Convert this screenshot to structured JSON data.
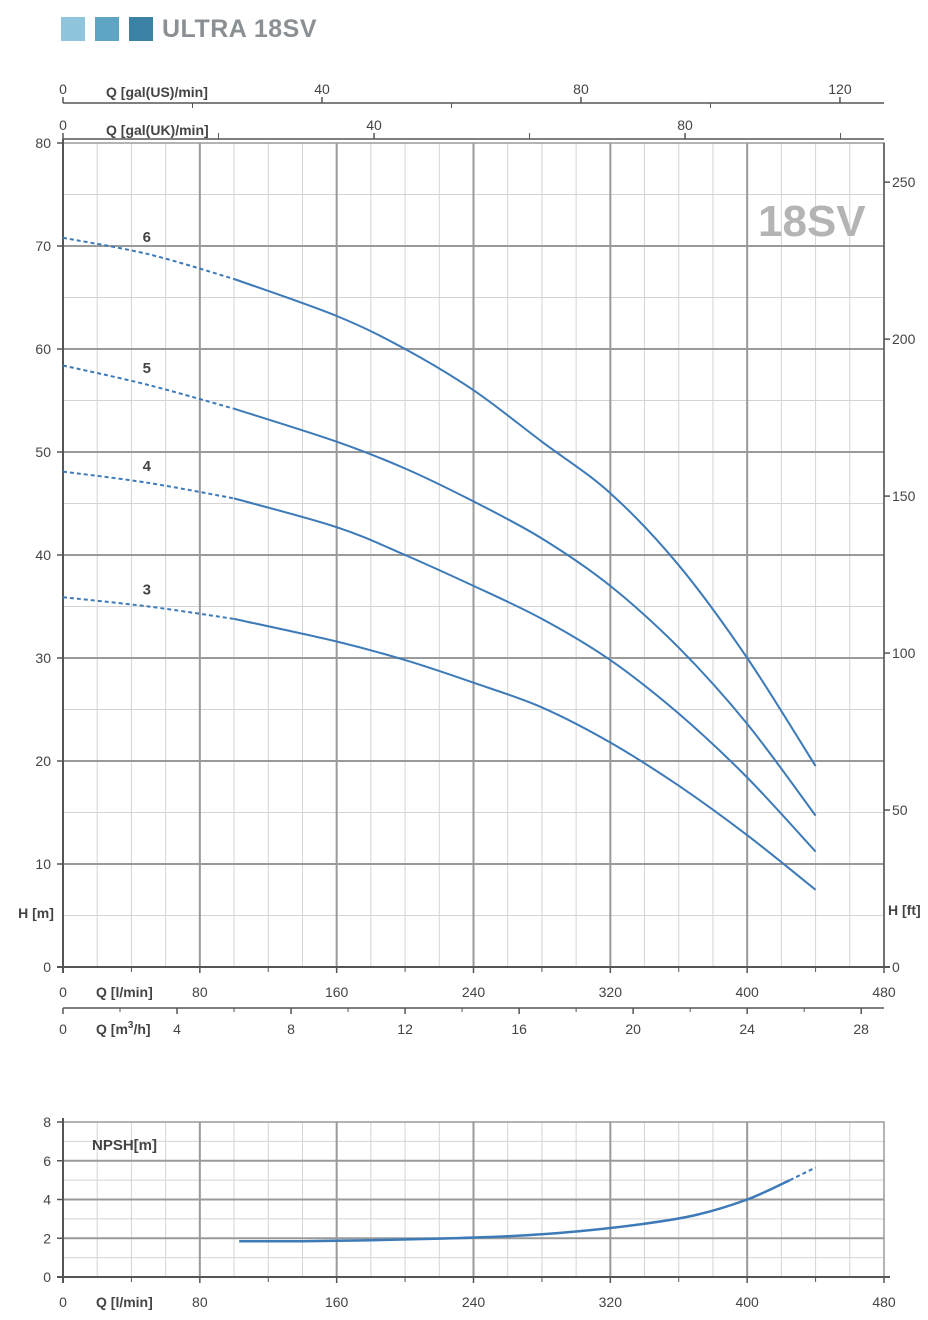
{
  "header": {
    "title": "ULTRA 18SV",
    "squares": [
      "#8ec5dc",
      "#5ea5c4",
      "#3b82a6"
    ]
  },
  "badge": "18SV",
  "colors": {
    "curve": "#3d7ab8",
    "grid_major": "#9a9a9a",
    "grid_minor": "#d4d4d4",
    "axis": "#555555"
  },
  "chart_data": [
    {
      "type": "line",
      "title": "",
      "xlabel": "Q [l/min]",
      "ylabel": "H [m]",
      "y2label": "H [ft]",
      "x_range": [
        0,
        480
      ],
      "y_range": [
        0,
        80
      ],
      "x_ticks": [
        0,
        80,
        160,
        240,
        320,
        400,
        480
      ],
      "y_ticks": [
        0,
        10,
        20,
        30,
        40,
        50,
        60,
        70,
        80
      ],
      "y2_ticks": [
        0,
        50,
        100,
        150,
        200,
        250
      ],
      "grid": true,
      "secondary_axes": {
        "q_m3h": {
          "label": "Q [m³/h]",
          "label_base": "Q [m",
          "label_sup": "3",
          "label_tail": "/h]",
          "ticks": [
            0,
            4,
            8,
            12,
            16,
            20,
            24,
            28
          ]
        },
        "q_gal_us": {
          "label": "Q [gal(US)/min]",
          "ticks": [
            0,
            40,
            80,
            120
          ]
        },
        "q_gal_uk": {
          "label": "Q [gal(UK)/min]",
          "ticks": [
            0,
            40,
            80
          ]
        }
      },
      "series": [
        {
          "name": "6",
          "dashed_until": 100,
          "x": [
            0,
            50,
            100,
            160,
            200,
            240,
            280,
            320,
            360,
            400,
            440
          ],
          "y": [
            70.8,
            69.2,
            66.8,
            63.2,
            60.0,
            56.0,
            51.0,
            46.0,
            39.0,
            30.0,
            19.5
          ]
        },
        {
          "name": "5",
          "dashed_until": 100,
          "x": [
            0,
            50,
            100,
            160,
            200,
            240,
            280,
            320,
            360,
            400,
            440
          ],
          "y": [
            58.4,
            56.5,
            54.2,
            51.0,
            48.4,
            45.2,
            41.6,
            37.0,
            31.0,
            23.6,
            14.7
          ]
        },
        {
          "name": "4",
          "dashed_until": 100,
          "x": [
            0,
            50,
            100,
            160,
            200,
            240,
            280,
            320,
            360,
            400,
            440
          ],
          "y": [
            48.1,
            47.0,
            45.5,
            42.7,
            40.0,
            37.0,
            33.8,
            29.8,
            24.6,
            18.4,
            11.2
          ]
        },
        {
          "name": "3",
          "dashed_until": 100,
          "x": [
            0,
            50,
            100,
            160,
            200,
            240,
            280,
            320,
            360,
            400,
            440
          ],
          "y": [
            35.9,
            35.0,
            33.8,
            31.6,
            29.8,
            27.6,
            25.2,
            21.8,
            17.6,
            12.8,
            7.5
          ]
        }
      ]
    },
    {
      "type": "line",
      "title": "",
      "xlabel": "Q [l/min]",
      "ylabel": "NPSH[m]",
      "x_range": [
        0,
        480
      ],
      "y_range": [
        0,
        8
      ],
      "x_ticks": [
        0,
        80,
        160,
        240,
        320,
        400,
        480
      ],
      "y_ticks": [
        0,
        2,
        4,
        6,
        8
      ],
      "grid": true,
      "series": [
        {
          "name": "",
          "dashed_from": 425,
          "x": [
            103,
            140,
            180,
            220,
            260,
            300,
            340,
            370,
            400,
            425,
            440
          ],
          "y": [
            1.85,
            1.85,
            1.9,
            1.98,
            2.1,
            2.35,
            2.75,
            3.2,
            4.0,
            5.0,
            5.65
          ]
        }
      ]
    }
  ]
}
